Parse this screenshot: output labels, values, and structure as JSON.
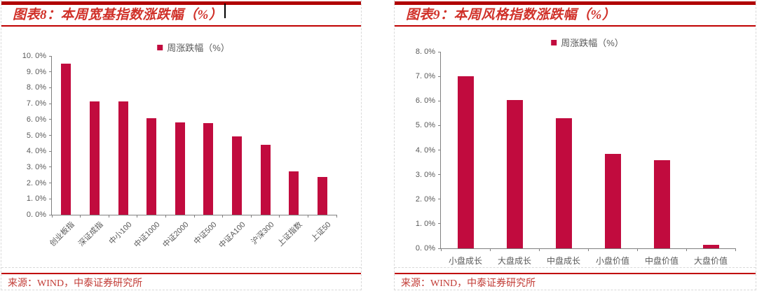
{
  "colors": {
    "bar": "#c10b3e",
    "rule_red": "#c00000",
    "rule_dark_red": "#b00000",
    "title_red": "#d03028",
    "source_red": "#c23b35",
    "axis_line": "#808080",
    "tick_label": "#595959"
  },
  "figure8": {
    "title": "图表8：本周宽基指数涨跌幅（%）",
    "legend": "周涨跌幅（%）",
    "source": "来源：WIND，中泰证券研究所"
  },
  "figure9": {
    "title": "图表9：本周风格指数涨跌幅（%）",
    "legend": "周涨跌幅（%）",
    "source": "来源：WIND，中泰证券研究所"
  },
  "chart_data": [
    {
      "id": "fig8",
      "type": "bar",
      "title": "图表8：本周宽基指数涨跌幅（%）",
      "legend_entries": [
        "周涨跌幅（%）"
      ],
      "legend_position": "top-center",
      "grid": false,
      "categories": [
        "创业板指",
        "深证成指",
        "中小100",
        "中证1000",
        "中证2000",
        "中证500",
        "中证A100",
        "沪深300",
        "上证指数",
        "上证50"
      ],
      "values": [
        9.5,
        7.15,
        7.15,
        6.1,
        5.8,
        5.75,
        4.95,
        4.4,
        2.75,
        2.4
      ],
      "ylim": [
        0,
        10
      ],
      "ytick_step": 1,
      "ytick_labels": [
        "0. 0%",
        "1. 0%",
        "2. 0%",
        "3. 0%",
        "4. 0%",
        "5. 0%",
        "6. 0%",
        "7. 0%",
        "8. 0%",
        "9. 0%",
        "10. 0%"
      ],
      "xlabel": "",
      "ylabel": "",
      "xlabel_rotation": -45
    },
    {
      "id": "fig9",
      "type": "bar",
      "title": "图表9：本周风格指数涨跌幅（%）",
      "legend_entries": [
        "周涨跌幅（%）"
      ],
      "legend_position": "top-center",
      "grid": false,
      "categories": [
        "小盘成长",
        "大盘成长",
        "中盘成长",
        "小盘价值",
        "中盘价值",
        "大盘价值"
      ],
      "values": [
        7.0,
        6.05,
        5.3,
        3.85,
        3.6,
        0.15
      ],
      "ylim": [
        0,
        8
      ],
      "ytick_step": 1,
      "ytick_labels": [
        "0. 0%",
        "1. 0%",
        "2. 0%",
        "3. 0%",
        "4. 0%",
        "5. 0%",
        "6. 0%",
        "7. 0%",
        "8. 0%"
      ],
      "xlabel": "",
      "ylabel": "",
      "xlabel_rotation": 0
    }
  ]
}
